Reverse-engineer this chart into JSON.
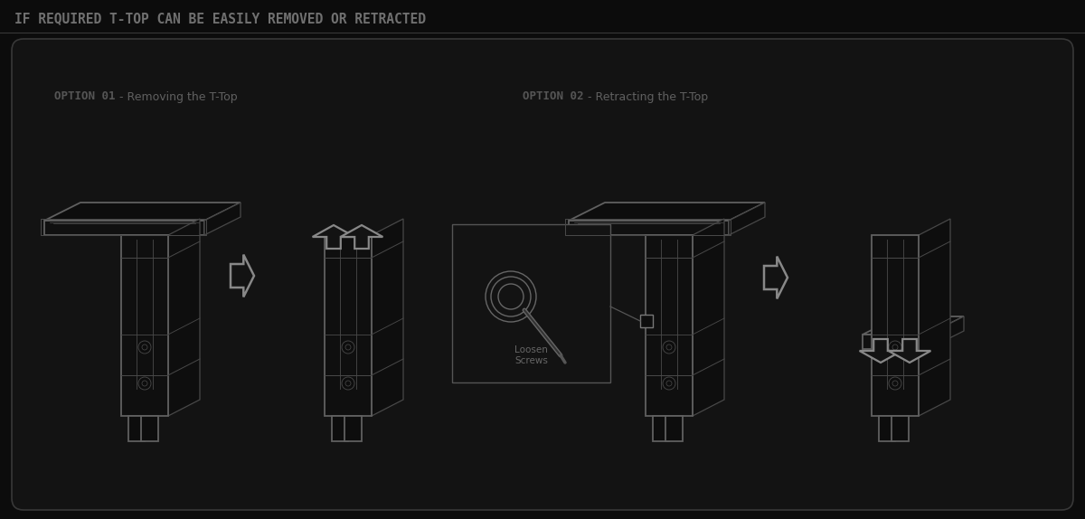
{
  "bg_color": "#0c0c0c",
  "inner_bg": "#131313",
  "title_text": "IF REQUIRED T-TOP CAN BE EASILY REMOVED OR RETRACTED",
  "title_color": "#707070",
  "title_fontsize": 10.5,
  "option1_label": "OPTION 01",
  "option1_rest": " - Removing the T-Top",
  "option2_label": "OPTION 02",
  "option2_rest": " - Retracting the T-Top",
  "option_label_color": "#555555",
  "option_rest_color": "#606060",
  "option_fontsize": 9,
  "screws_label": "Loosen\nScrews",
  "border_color": "#383838",
  "draw_color": "#606060",
  "draw_color2": "#484848",
  "fill_color": "#111111",
  "arrow_color": "#888888",
  "arrow_lw": 2.0,
  "lw_main": 1.3,
  "lw_detail": 0.9
}
